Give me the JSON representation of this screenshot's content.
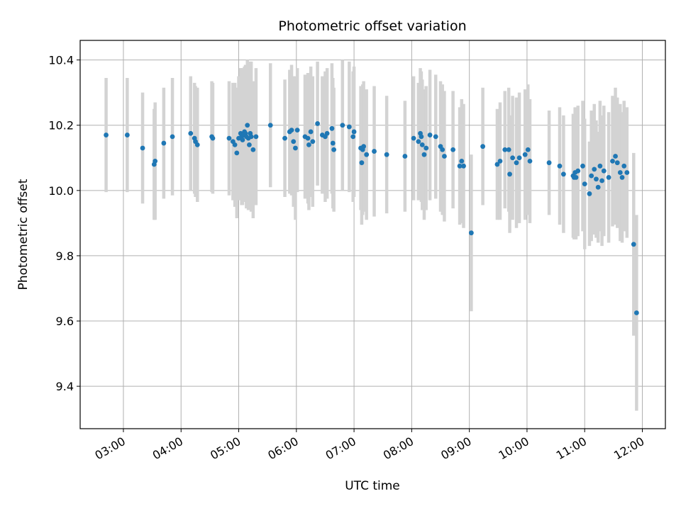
{
  "chart_data": {
    "type": "scatter",
    "title": "Photometric offset variation",
    "xlabel": "UTC time",
    "ylabel": "Photometric offset",
    "xlim": [
      "02:15",
      "12:24"
    ],
    "ylim": [
      9.27,
      10.46
    ],
    "x_ticks": [
      "03:00",
      "04:00",
      "05:00",
      "06:00",
      "07:00",
      "08:00",
      "09:00",
      "10:00",
      "11:00",
      "12:00"
    ],
    "y_ticks": [
      9.4,
      9.6,
      9.8,
      10.0,
      10.2,
      10.4
    ],
    "y_tick_labels": [
      "9.4",
      "9.6",
      "9.8",
      "10.0",
      "10.2",
      "10.4"
    ],
    "grid": true,
    "colors": {
      "points": "#1f77b4",
      "errorbars": "#d3d3d3",
      "grid": "#b0b0b0"
    },
    "series": [
      {
        "x": [
          "02:42",
          "03:04",
          "03:20",
          "03:32",
          "03:33",
          "03:42",
          "03:51",
          "04:10",
          "04:14",
          "04:15",
          "04:17",
          "04:32",
          "04:33",
          "04:50",
          "04:54",
          "04:56",
          "04:58",
          "05:00",
          "05:02",
          "05:03",
          "05:04",
          "05:05",
          "05:06",
          "05:07",
          "05:08",
          "05:09",
          "05:10",
          "05:11",
          "05:12",
          "05:13",
          "05:15",
          "05:18",
          "05:33",
          "05:48",
          "05:53",
          "05:55",
          "05:57",
          "05:59",
          "06:01",
          "06:09",
          "06:12",
          "06:13",
          "06:15",
          "06:17",
          "06:22",
          "06:27",
          "06:30",
          "06:32",
          "06:37",
          "06:38",
          "06:39",
          "06:48",
          "06:55",
          "06:59",
          "07:00",
          "07:07",
          "07:08",
          "07:09",
          "07:10",
          "07:13",
          "07:21",
          "07:34",
          "07:53",
          "08:02",
          "08:07",
          "08:09",
          "08:10",
          "08:11",
          "08:13",
          "08:15",
          "08:19",
          "08:25",
          "08:30",
          "08:32",
          "08:34",
          "08:43",
          "08:50",
          "08:52",
          "08:54",
          "09:02",
          "09:14",
          "09:29",
          "09:32",
          "09:37",
          "09:41",
          "09:42",
          "09:45",
          "09:49",
          "09:52",
          "09:58",
          "10:01",
          "10:03",
          "10:23",
          "10:34",
          "10:38",
          "10:48",
          "10:49",
          "10:50",
          "10:51",
          "10:53",
          "10:58",
          "11:00",
          "11:05",
          "11:07",
          "11:10",
          "11:12",
          "11:14",
          "11:16",
          "11:18",
          "11:20",
          "11:25",
          "11:29",
          "11:32",
          "11:34",
          "11:37",
          "11:39",
          "11:41",
          "11:44",
          "11:51",
          "11:54"
        ],
        "y": [
          10.17,
          10.17,
          10.13,
          10.08,
          10.09,
          10.145,
          10.165,
          10.175,
          10.16,
          10.15,
          10.14,
          10.165,
          10.16,
          10.16,
          10.15,
          10.14,
          10.115,
          10.16,
          10.175,
          10.165,
          10.155,
          10.17,
          10.18,
          10.175,
          10.165,
          10.2,
          10.16,
          10.14,
          10.175,
          10.165,
          10.125,
          10.165,
          10.2,
          10.16,
          10.18,
          10.185,
          10.15,
          10.13,
          10.185,
          10.165,
          10.16,
          10.14,
          10.18,
          10.15,
          10.205,
          10.17,
          10.165,
          10.175,
          10.19,
          10.145,
          10.125,
          10.2,
          10.195,
          10.165,
          10.18,
          10.13,
          10.085,
          10.125,
          10.135,
          10.11,
          10.12,
          10.11,
          10.105,
          10.16,
          10.15,
          10.175,
          10.165,
          10.14,
          10.11,
          10.13,
          10.17,
          10.165,
          10.135,
          10.125,
          10.105,
          10.125,
          10.075,
          10.09,
          10.075,
          9.87,
          10.135,
          10.08,
          10.09,
          10.125,
          10.125,
          10.05,
          10.1,
          10.085,
          10.1,
          10.11,
          10.125,
          10.09,
          10.085,
          10.075,
          10.05,
          10.045,
          10.04,
          10.055,
          10.04,
          10.06,
          10.075,
          10.02,
          9.99,
          10.045,
          10.065,
          10.035,
          10.01,
          10.075,
          10.03,
          10.06,
          10.04,
          10.09,
          10.105,
          10.085,
          10.055,
          10.04,
          10.075,
          10.055,
          9.835,
          9.625
        ],
        "yerr": [
          0.175,
          0.175,
          0.17,
          0.17,
          0.18,
          0.17,
          0.18,
          0.175,
          0.17,
          0.17,
          0.175,
          0.17,
          0.17,
          0.175,
          0.18,
          0.19,
          0.2,
          0.19,
          0.2,
          0.21,
          0.2,
          0.2,
          0.2,
          0.21,
          0.22,
          0.2,
          0.22,
          0.2,
          0.22,
          0.23,
          0.21,
          0.21,
          0.19,
          0.18,
          0.19,
          0.2,
          0.2,
          0.22,
          0.19,
          0.19,
          0.2,
          0.2,
          0.2,
          0.2,
          0.19,
          0.18,
          0.2,
          0.2,
          0.2,
          0.2,
          0.19,
          0.2,
          0.2,
          0.2,
          0.2,
          0.19,
          0.19,
          0.2,
          0.2,
          0.2,
          0.2,
          0.18,
          0.17,
          0.19,
          0.18,
          0.2,
          0.2,
          0.2,
          0.2,
          0.19,
          0.2,
          0.19,
          0.2,
          0.2,
          0.2,
          0.18,
          0.18,
          0.19,
          0.19,
          0.24,
          0.18,
          0.17,
          0.18,
          0.18,
          0.19,
          0.18,
          0.19,
          0.2,
          0.2,
          0.2,
          0.2,
          0.19,
          0.16,
          0.18,
          0.18,
          0.19,
          0.19,
          0.2,
          0.19,
          0.2,
          0.2,
          0.2,
          0.16,
          0.2,
          0.2,
          0.18,
          0.17,
          0.2,
          0.2,
          0.2,
          0.2,
          0.2,
          0.21,
          0.2,
          0.21,
          0.2,
          0.2,
          0.2,
          0.28,
          0.3
        ]
      }
    ]
  }
}
